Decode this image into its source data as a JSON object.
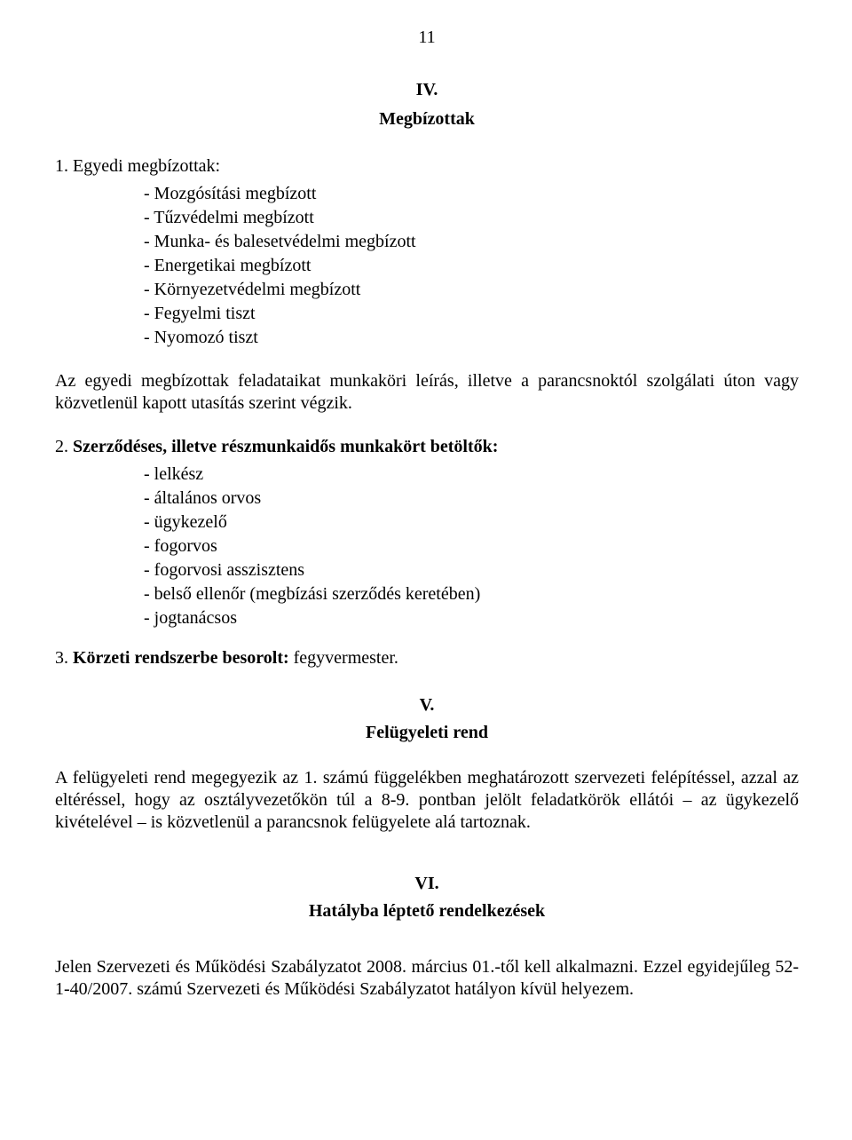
{
  "page_number": "11",
  "section4": {
    "number": "IV.",
    "title": "Megbízottak",
    "item1": {
      "num": "1.",
      "heading": "Egyedi megbízottak:",
      "bullets": [
        "- Mozgósítási megbízott",
        "- Tűzvédelmi megbízott",
        "- Munka- és balesetvédelmi megbízott",
        "- Energetikai megbízott",
        "- Környezetvédelmi megbízott",
        "- Fegyelmi tiszt",
        "- Nyomozó tiszt"
      ]
    },
    "para_after_1": "Az egyedi megbízottak feladataikat munkaköri leírás, illetve a parancsnoktól szolgálati úton vagy közvetlenül kapott utasítás szerint végzik.",
    "item2": {
      "num": "2.",
      "heading": "Szerződéses, illetve részmunkaidős munkakört betöltők:",
      "bullets": [
        "- lelkész",
        "- általános orvos",
        "- ügykezelő",
        "- fogorvos",
        "- fogorvosi asszisztens",
        "- belső ellenőr (megbízási szerződés keretében)",
        "- jogtanácsos"
      ]
    },
    "item3": {
      "num": "3.",
      "heading_bold": "Körzeti rendszerbe besorolt:",
      "heading_rest": " fegyvermester."
    }
  },
  "section5": {
    "number": "V.",
    "title": "Felügyeleti rend",
    "para": "A felügyeleti rend megegyezik az 1. számú függelékben meghatározott szervezeti felépítéssel, azzal az eltéréssel, hogy az osztályvezetőkön túl a 8-9. pontban jelölt feladatkörök ellátói – az ügykezelő kivételével – is közvetlenül a parancsnok felügyelete alá tartoznak."
  },
  "section6": {
    "number": "VI.",
    "title": "Hatályba léptető rendelkezések",
    "para": "Jelen Szervezeti és Működési Szabályzatot 2008. március 01.-től kell alkalmazni. Ezzel egyidejűleg 52-1-40/2007. számú Szervezeti és Működési Szabályzatot hatályon kívül helyezem."
  }
}
